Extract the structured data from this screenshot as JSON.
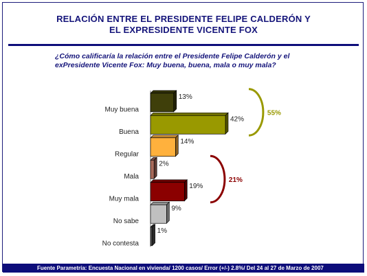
{
  "header": {
    "title_line1": "RELACIÓN ENTRE EL PRESIDENTE FELIPE CALDERÓN Y",
    "title_line2": "EL EXPRESIDENTE VICENTE FOX",
    "question_line1": "¿Cómo calificaría la relación entre el Presidente Felipe Calderón y el",
    "question_line2": "exPresidente Vicente Fox: Muy buena, buena, mala o muy mala?"
  },
  "footer": {
    "source": "Fuente Parametría: Encuesta Nacional en vivienda/ 1200 casos/ Error (+/-) 2.8%/  Del 24 al 27 de Marzo de 2007"
  },
  "chart_data": {
    "type": "bar",
    "orientation": "horizontal",
    "categories": [
      "Muy buena",
      "Buena",
      "Regular",
      "Mala",
      "Muy mala",
      "No sabe",
      "No contesta"
    ],
    "values": [
      13,
      42,
      14,
      2,
      19,
      9,
      1
    ],
    "value_labels": [
      "13%",
      "42%",
      "14%",
      "2%",
      "19%",
      "9%",
      "1%"
    ],
    "colors": [
      "#3f3f0a",
      "#999900",
      "#ffb13d",
      "#a86a5a",
      "#8b0000",
      "#c0c0c0",
      "#4d4d4d"
    ],
    "groups": [
      {
        "label": "55%",
        "categories": [
          "Muy buena",
          "Buena"
        ],
        "color": "#999900"
      },
      {
        "label": "21%",
        "categories": [
          "Mala",
          "Muy mala"
        ],
        "color": "#8b0000"
      }
    ],
    "title": "",
    "xlabel": "",
    "ylabel": "",
    "xlim": [
      0,
      42
    ],
    "grid": false,
    "legend": "none"
  }
}
